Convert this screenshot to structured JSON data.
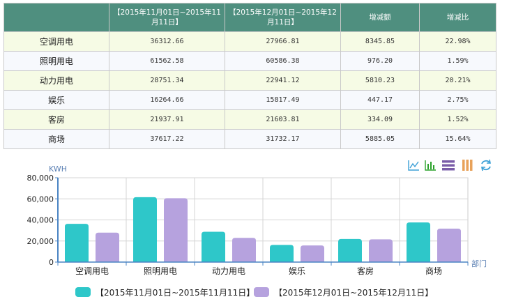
{
  "table": {
    "headers": [
      "",
      "【2015年11月01日~2015年11月11日】",
      "【2015年12月01日~2015年12月11日】",
      "增减额",
      "增减比"
    ],
    "rows": [
      [
        "空调用电",
        "36312.66",
        "27966.81",
        "8345.85",
        "22.98%"
      ],
      [
        "照明用电",
        "61562.58",
        "60586.38",
        "976.20",
        "1.59%"
      ],
      [
        "动力用电",
        "28751.34",
        "22941.12",
        "5810.23",
        "20.21%"
      ],
      [
        "娱乐",
        "16264.66",
        "15817.49",
        "447.17",
        "2.75%"
      ],
      [
        "客房",
        "21937.91",
        "21603.81",
        "334.09",
        "1.52%"
      ],
      [
        "商场",
        "37617.22",
        "31732.17",
        "5885.05",
        "15.64%"
      ]
    ]
  },
  "toolbar": {
    "icons": [
      "line-chart-icon",
      "bar-chart-icon",
      "stack-icon",
      "tiled-icon",
      "refresh-icon"
    ]
  },
  "chart_data": {
    "type": "bar",
    "categories": [
      "空调用电",
      "照明用电",
      "动力用电",
      "娱乐",
      "客房",
      "商场"
    ],
    "series": [
      {
        "name": "【2015年11月01日~2015年11月11日】",
        "color": "#2ec7c9",
        "values": [
          36312.66,
          61562.58,
          28751.34,
          16264.66,
          21937.91,
          37617.22
        ]
      },
      {
        "name": "【2015年12月01日~2015年12月11日】",
        "color": "#b6a2de",
        "values": [
          27966.81,
          60586.38,
          22941.12,
          15817.49,
          21603.81,
          31732.17
        ]
      }
    ],
    "ylabel": "KWH",
    "xlabel": "部门",
    "yticks": [
      "0",
      "20,000",
      "40,000",
      "60,000",
      "80,000"
    ],
    "ylim": [
      0,
      80000
    ],
    "grid": true,
    "legend": "bottom"
  }
}
